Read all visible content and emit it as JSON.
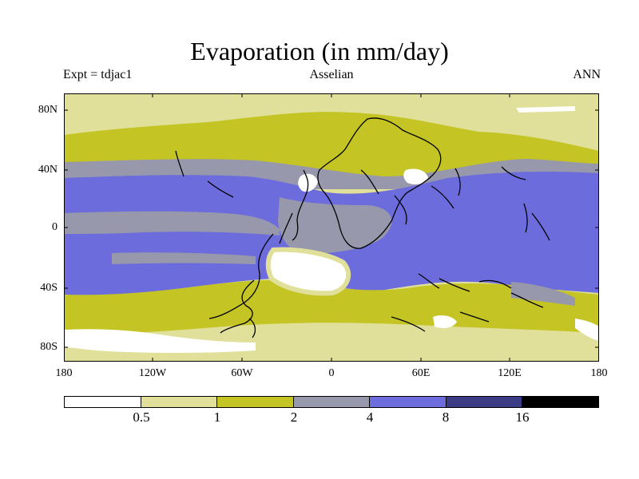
{
  "header": {
    "title": "Evaporation (in mm/day)",
    "experiment": "Expt = tdjac1",
    "period": "Asselian",
    "season": "ANN"
  },
  "axes": {
    "lat_labels": [
      "80N",
      "40N",
      "0",
      "40S",
      "80S"
    ],
    "lon_labels": [
      "180",
      "120W",
      "60W",
      "0",
      "60E",
      "120E",
      "180"
    ]
  },
  "colorbar": {
    "colors": [
      "#ffffff",
      "#e0e09a",
      "#c4c424",
      "#9898ac",
      "#6c6cdc",
      "#3c3c84",
      "#000000"
    ],
    "labels": [
      "0.5",
      "1",
      "2",
      "4",
      "8",
      "16"
    ]
  },
  "map_colors": {
    "white": "#ffffff",
    "pale": "#e0e09a",
    "olive": "#c4c424",
    "gray": "#9898ac",
    "blue": "#6c6cdc",
    "coast": "#000000"
  }
}
